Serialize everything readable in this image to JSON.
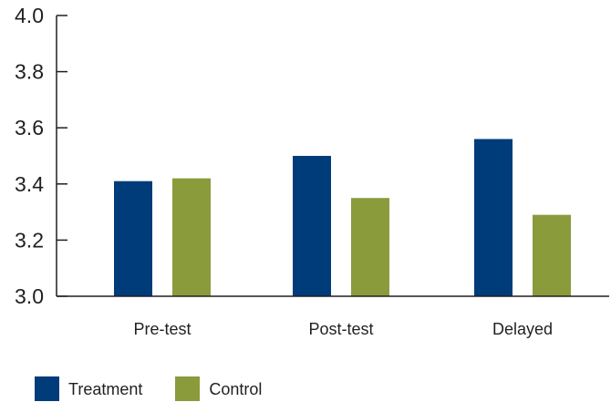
{
  "chart_data": {
    "type": "bar",
    "categories": [
      "Pre-test",
      "Post-test",
      "Delayed"
    ],
    "series": [
      {
        "name": "Treatment",
        "values": [
          3.41,
          3.5,
          3.56
        ],
        "color": "#003b7a"
      },
      {
        "name": "Control",
        "values": [
          3.42,
          3.35,
          3.29
        ],
        "color": "#8a9b3c"
      }
    ],
    "yticks": [
      "3.0",
      "3.2",
      "3.4",
      "3.6",
      "3.8",
      "4.0"
    ],
    "ylim": [
      3.0,
      4.0
    ],
    "grid": false,
    "legend_position": "bottom-left",
    "title": "",
    "xlabel": "",
    "ylabel": ""
  }
}
